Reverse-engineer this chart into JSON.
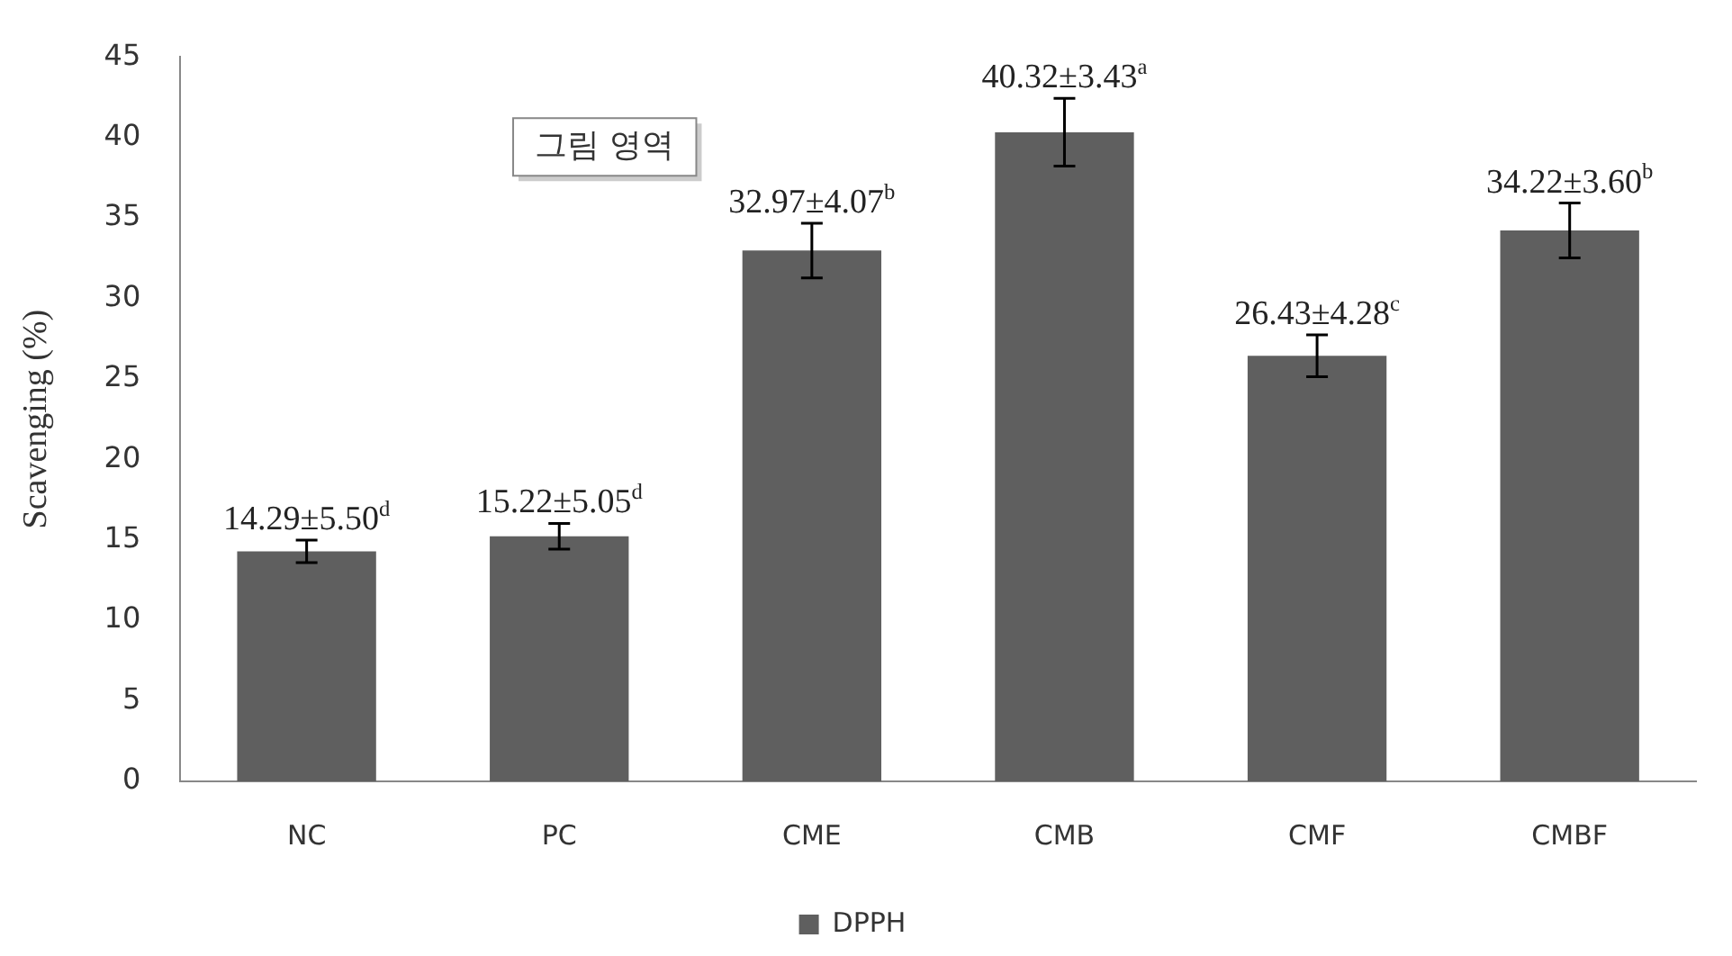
{
  "chart_data": {
    "type": "bar",
    "ylabel": "Scavenging (%)",
    "categories": [
      "NC",
      "PC",
      "CME",
      "CMB",
      "CMF",
      "CMBF"
    ],
    "series": [
      {
        "name": "DPPH",
        "color": "#5f5f5f",
        "values": [
          14.29,
          15.22,
          32.97,
          40.32,
          26.43,
          34.22
        ],
        "errors": [
          0.7,
          0.8,
          1.7,
          2.1,
          1.3,
          1.7
        ],
        "value_labels": [
          "14.29±5.50$^{d}$",
          "15.22±5.05$^{d}$",
          "32.97±4.07$^{b}$",
          "40.32±3.43$^{a}$",
          "26.43±4.28$^{c}$",
          "34.22±3.60$^{b}$"
        ]
      }
    ],
    "ylim": [
      0,
      45
    ],
    "yticks": [
      0,
      5,
      10,
      15,
      20,
      25,
      30,
      35,
      40,
      45
    ],
    "grid": false,
    "legend": "bottom",
    "annotations": [
      "그림 영역"
    ]
  }
}
